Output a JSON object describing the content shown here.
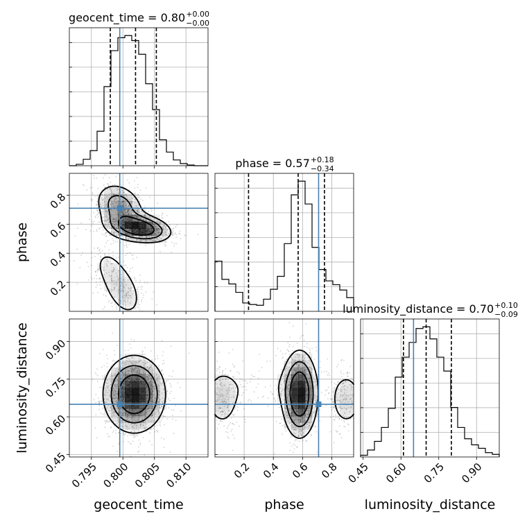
{
  "chart_data": {
    "type": "corner",
    "parameters": [
      "geocent_time",
      "phase",
      "luminosity_distance"
    ],
    "titles": [
      {
        "param": "geocent_time",
        "name": "geocent_time",
        "value": "0.80",
        "plus": "+0.00",
        "minus": "−0.00"
      },
      {
        "param": "phase",
        "name": "phase",
        "value": "0.57",
        "plus": "+0.18",
        "minus": "−0.34"
      },
      {
        "param": "luminosity_distance",
        "name": "luminosity_distance",
        "value": "0.70",
        "plus": "+0.10",
        "minus": "−0.09"
      }
    ],
    "axis_labels": {
      "x": [
        "geocent_time",
        "phase",
        "luminosity_distance"
      ],
      "y": [
        "phase",
        "luminosity_distance"
      ]
    },
    "ranges": {
      "geocent_time": [
        0.7915,
        0.8135
      ],
      "phase": [
        0.0,
        0.95
      ],
      "luminosity_distance": [
        0.44,
        0.99
      ]
    },
    "ticks": {
      "geocent_time": {
        "values": [
          0.795,
          0.8,
          0.805,
          0.81
        ],
        "labels": [
          "0.795",
          "0.800",
          "0.805",
          "0.810"
        ]
      },
      "phase": {
        "values": [
          0.2,
          0.4,
          0.6,
          0.8
        ],
        "labels": [
          "0.2",
          "0.4",
          "0.6",
          "0.8"
        ]
      },
      "luminosity_distance": {
        "values": [
          0.45,
          0.6,
          0.75,
          0.9
        ],
        "labels": [
          "0.45",
          "0.60",
          "0.75",
          "0.90"
        ]
      }
    },
    "truths": {
      "geocent_time": 0.7995,
      "phase": 0.71,
      "luminosity_distance": 0.65
    },
    "quantiles": {
      "geocent_time": [
        0.798,
        0.802,
        0.8053
      ],
      "phase": [
        0.23,
        0.57,
        0.75
      ],
      "luminosity_distance": [
        0.61,
        0.7,
        0.8
      ]
    },
    "histograms": {
      "geocent_time": {
        "edges": [
          0.7915,
          0.7926,
          0.7937,
          0.7948,
          0.7959,
          0.797,
          0.7981,
          0.7992,
          0.8003,
          0.8014,
          0.8025,
          0.8036,
          0.8047,
          0.8058,
          0.8069,
          0.808,
          0.8091,
          0.8102,
          0.8113,
          0.8124,
          0.8135
        ],
        "counts": [
          0,
          2,
          9,
          21,
          48,
          110,
          160,
          178,
          181,
          174,
          155,
          114,
          78,
          36,
          19,
          8,
          3,
          1,
          0,
          0
        ]
      },
      "phase": {
        "edges": [
          0.0,
          0.0475,
          0.095,
          0.1425,
          0.19,
          0.2375,
          0.285,
          0.3325,
          0.38,
          0.4275,
          0.475,
          0.5225,
          0.57,
          0.6175,
          0.665,
          0.7125,
          0.76,
          0.8075,
          0.855,
          0.9025,
          0.95
        ],
        "counts": [
          66,
          42,
          36,
          25,
          11,
          9,
          8,
          16,
          29,
          46,
          89,
          153,
          171,
          141,
          84,
          55,
          40,
          35,
          28,
          18
        ]
      },
      "luminosity_distance": {
        "edges": [
          0.44,
          0.4675,
          0.495,
          0.5225,
          0.55,
          0.5775,
          0.605,
          0.6325,
          0.66,
          0.6875,
          0.715,
          0.7425,
          0.77,
          0.7975,
          0.825,
          0.8525,
          0.88,
          0.9075,
          0.935,
          0.9625,
          0.99
        ],
        "counts": [
          2,
          8,
          18,
          34,
          56,
          92,
          115,
          132,
          148,
          150,
          136,
          115,
          99,
          57,
          34,
          21,
          14,
          10,
          5,
          3
        ]
      }
    },
    "density_2d": [
      {
        "x": "geocent_time",
        "y": "phase",
        "modes": [
          {
            "cx": 0.8025,
            "cy": 0.575,
            "sx": 0.0025,
            "sy": 0.05,
            "rho": -0.3,
            "w": 1.0
          },
          {
            "cx": 0.7995,
            "cy": 0.72,
            "sx": 0.002,
            "sy": 0.085,
            "rho": -0.25,
            "w": 0.5
          },
          {
            "cx": 0.8,
            "cy": 0.14,
            "sx": 0.002,
            "sy": 0.12,
            "rho": -0.4,
            "w": 0.22
          },
          {
            "cx": 0.797,
            "cy": 0.35,
            "sx": 0.0025,
            "sy": 0.12,
            "rho": 0.0,
            "w": 0.1
          }
        ]
      },
      {
        "x": "geocent_time",
        "y": "luminosity_distance",
        "modes": [
          {
            "cx": 0.8018,
            "cy": 0.69,
            "sx": 0.0024,
            "sy": 0.075,
            "rho": 0.0,
            "w": 1.0
          }
        ]
      },
      {
        "x": "phase",
        "y": "luminosity_distance",
        "modes": [
          {
            "cx": 0.58,
            "cy": 0.69,
            "sx": 0.06,
            "sy": 0.085,
            "rho": 0.0,
            "w": 1.0
          },
          {
            "cx": 0.05,
            "cy": 0.67,
            "sx": 0.07,
            "sy": 0.07,
            "rho": 0.0,
            "w": 0.22
          },
          {
            "cx": 0.9,
            "cy": 0.67,
            "sx": 0.07,
            "sy": 0.07,
            "rho": 0.0,
            "w": 0.22
          },
          {
            "cx": 0.3,
            "cy": 0.72,
            "sx": 0.2,
            "sy": 0.05,
            "rho": 0.0,
            "w": 0.08
          }
        ]
      }
    ],
    "contour_levels": [
      0.12,
      0.32,
      0.6
    ],
    "grid": true,
    "colors": {
      "truth": "#4682b4",
      "contours": "#000000",
      "density": "#000000",
      "grid": "#b0b0b0"
    }
  }
}
